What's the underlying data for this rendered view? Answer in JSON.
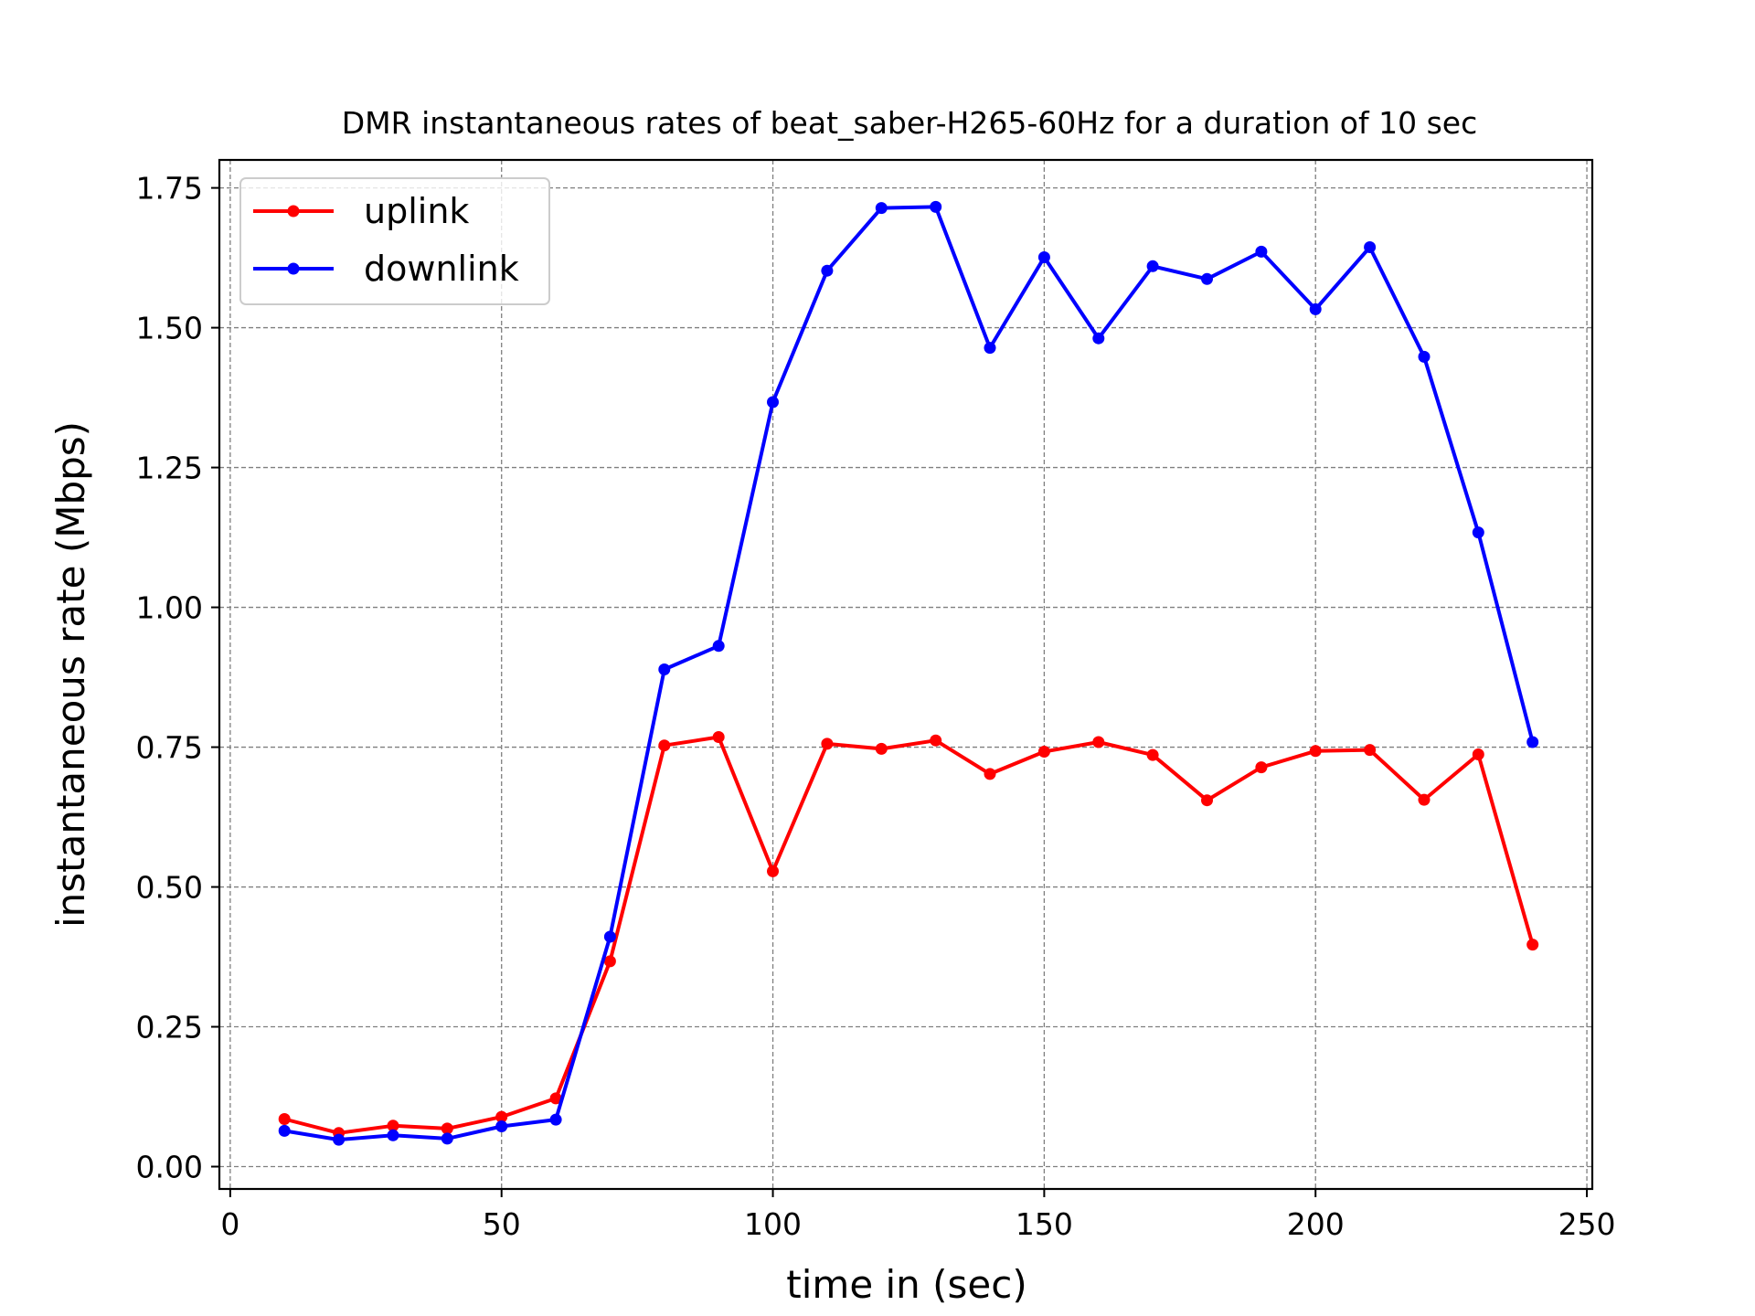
{
  "chart_data": {
    "type": "line",
    "title": "DMR instantaneous rates of beat_saber-H265-60Hz for a duration of 10 sec",
    "xlabel": "time in (sec)",
    "ylabel": "instantaneous rate (Mbps)",
    "xlim": [
      -2,
      251
    ],
    "ylim": [
      -0.04,
      1.8
    ],
    "xticks": [
      0,
      50,
      100,
      150,
      200,
      250
    ],
    "xtick_labels": [
      "0",
      "50",
      "100",
      "150",
      "200",
      "250"
    ],
    "yticks": [
      0.0,
      0.25,
      0.5,
      0.75,
      1.0,
      1.25,
      1.5,
      1.75
    ],
    "ytick_labels": [
      "0.00",
      "0.25",
      "0.50",
      "0.75",
      "1.00",
      "1.25",
      "1.50",
      "1.75"
    ],
    "grid": true,
    "legend_position": "top-left",
    "x": [
      10,
      20,
      30,
      40,
      50,
      60,
      70,
      80,
      90,
      100,
      110,
      120,
      130,
      140,
      150,
      160,
      170,
      180,
      190,
      200,
      210,
      220,
      230,
      240
    ],
    "series": [
      {
        "name": "uplink",
        "color": "#ff0000",
        "marker": "circle",
        "values": [
          0.085,
          0.06,
          0.073,
          0.068,
          0.089,
          0.122,
          0.367,
          0.753,
          0.768,
          0.528,
          0.756,
          0.747,
          0.762,
          0.702,
          0.742,
          0.759,
          0.736,
          0.655,
          0.714,
          0.743,
          0.745,
          0.656,
          0.737,
          0.397
        ]
      },
      {
        "name": "downlink",
        "color": "#0000ff",
        "marker": "circle",
        "values": [
          0.064,
          0.048,
          0.056,
          0.05,
          0.072,
          0.084,
          0.411,
          0.889,
          0.931,
          1.367,
          1.602,
          1.714,
          1.716,
          1.464,
          1.626,
          1.481,
          1.61,
          1.587,
          1.636,
          1.533,
          1.644,
          1.448,
          1.134,
          0.759
        ]
      }
    ]
  }
}
